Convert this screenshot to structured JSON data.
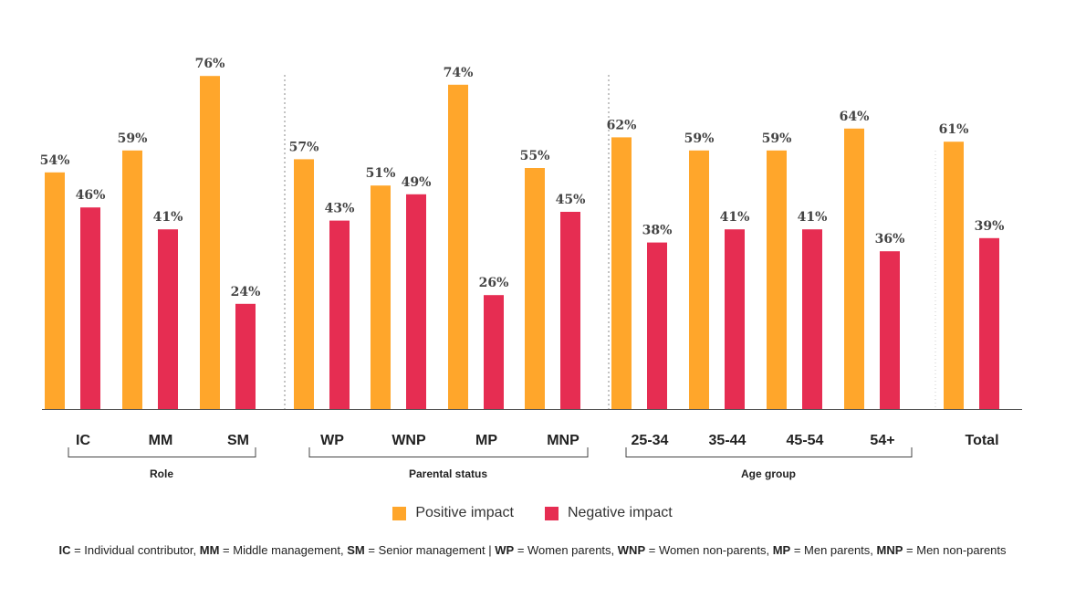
{
  "colors": {
    "positive": "#FFA62B",
    "negative": "#E62D52",
    "axis": "#555555"
  },
  "legend": {
    "positive_label": "Positive impact",
    "negative_label": "Negative impact"
  },
  "chart_data": {
    "type": "bar",
    "categories": [
      "IC",
      "MM",
      "SM",
      "WP",
      "WNP",
      "MP",
      "MNP",
      "25-34",
      "35-44",
      "45-54",
      "54+",
      "Total"
    ],
    "series": [
      {
        "name": "Positive impact",
        "values": [
          54,
          59,
          76,
          57,
          51,
          74,
          55,
          62,
          59,
          59,
          64,
          61
        ]
      },
      {
        "name": "Negative impact",
        "values": [
          46,
          41,
          24,
          43,
          49,
          26,
          45,
          38,
          41,
          41,
          36,
          39
        ]
      }
    ],
    "value_suffix": "%",
    "groups": [
      {
        "label": "Role",
        "categories": [
          "IC",
          "MM",
          "SM"
        ]
      },
      {
        "label": "Parental status",
        "categories": [
          "WP",
          "WNP",
          "MP",
          "MNP"
        ]
      },
      {
        "label": "Age group",
        "categories": [
          "25-34",
          "35-44",
          "45-54",
          "54+"
        ]
      }
    ],
    "ylim": [
      0,
      80
    ],
    "title": "",
    "xlabel": "",
    "ylabel": "",
    "legend_position": "bottom"
  },
  "footnote": {
    "ic_abbr": "IC",
    "ic_text": " = Individual contributor,  ",
    "mm_abbr": "MM",
    "mm_text": " = Middle management, ",
    "sm_abbr": "SM",
    "sm_text": " = Senior management | ",
    "wp_abbr": "WP",
    "wp_text": " = Women parents, ",
    "wnp_abbr": "WNP",
    "wnp_text": " = Women non-parents, ",
    "mp_abbr": "MP",
    "mp_text": " = Men parents, ",
    "mnp_abbr": "MNP",
    "mnp_text": " = Men non-parents"
  }
}
